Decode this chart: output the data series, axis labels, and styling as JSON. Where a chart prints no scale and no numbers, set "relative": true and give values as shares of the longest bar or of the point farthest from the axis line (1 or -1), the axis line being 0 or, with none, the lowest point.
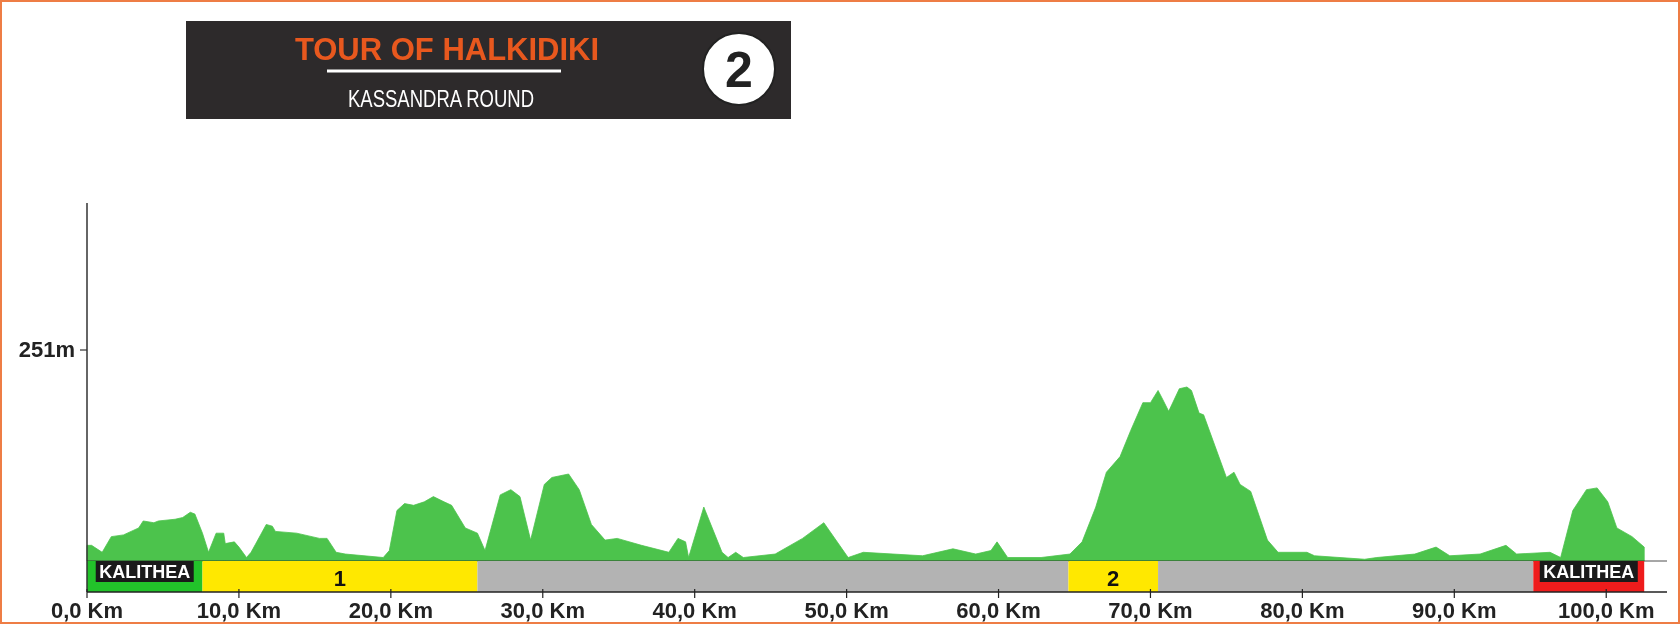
{
  "chart_data": [
    {
      "type": "area",
      "title": "TOUR OF HALKIDIKI",
      "subtitle": "KASSANDRA ROUND",
      "ylabel": "251m",
      "annotations": [
        "2"
      ],
      "relative": true,
      "tick_labels": false,
      "x": [
        0,
        0.3,
        1.0,
        1.6,
        2.4,
        3.4,
        3.7,
        4.4,
        4.7,
        5.8,
        6.3,
        6.8,
        7.1,
        7.6,
        8.0,
        8.5,
        9.0,
        9.1,
        9.7,
        10.0,
        10.5,
        10.8,
        11.8,
        12.2,
        12.4,
        13.8,
        15.3,
        15.8,
        16.4,
        17.0,
        19.5,
        19.9,
        20.4,
        20.9,
        21.5,
        22.2,
        22.8,
        23.5,
        24.0,
        24.9,
        25.7,
        26.2,
        27.2,
        27.9,
        28.5,
        29.2,
        30.1,
        30.6,
        31.7,
        32.4,
        33.2,
        34.1,
        34.9,
        36.5,
        38.3,
        38.9,
        39.4,
        39.6,
        40.6,
        41.8,
        42.2,
        42.7,
        43.2,
        45.3,
        47.1,
        48.5,
        50.1,
        51.1,
        55.0,
        57.0,
        58.5,
        59.5,
        59.9,
        60.6,
        62.8,
        64.7,
        65.5,
        66.4,
        67.1,
        68.0,
        68.7,
        69.5,
        70.0,
        70.5,
        70.8,
        71.2,
        71.9,
        72.4,
        72.7,
        73.2,
        73.5,
        75.0,
        75.5,
        75.9,
        76.6,
        77.7,
        78.4,
        80.3,
        80.8,
        84.1,
        84.9,
        87.4,
        88.8,
        89.7,
        91.7,
        93.4,
        94.1,
        96.3,
        97.0,
        97.8,
        98.7,
        99.4,
        100.1,
        100.7,
        101.7,
        102.5
      ],
      "series": [
        {
          "color": "#4cc34c",
          "values": [
            0.09,
            0.09,
            0.05,
            0.14,
            0.15,
            0.19,
            0.23,
            0.22,
            0.23,
            0.24,
            0.25,
            0.28,
            0.27,
            0.16,
            0.05,
            0.16,
            0.16,
            0.1,
            0.11,
            0.08,
            0.02,
            0.05,
            0.21,
            0.2,
            0.17,
            0.16,
            0.13,
            0.13,
            0.05,
            0.04,
            0.02,
            0.06,
            0.29,
            0.33,
            0.32,
            0.34,
            0.37,
            0.34,
            0.32,
            0.19,
            0.16,
            0.06,
            0.38,
            0.41,
            0.37,
            0.12,
            0.44,
            0.48,
            0.5,
            0.41,
            0.21,
            0.12,
            0.13,
            0.09,
            0.05,
            0.13,
            0.11,
            0.02,
            0.31,
            0.05,
            0.02,
            0.05,
            0.02,
            0.04,
            0.13,
            0.22,
            0.02,
            0.05,
            0.03,
            0.07,
            0.04,
            0.06,
            0.11,
            0.02,
            0.02,
            0.04,
            0.11,
            0.31,
            0.51,
            0.6,
            0.75,
            0.91,
            0.91,
            0.98,
            0.93,
            0.86,
            0.99,
            1,
            0.98,
            0.85,
            0.84,
            0.48,
            0.51,
            0.44,
            0.4,
            0.12,
            0.05,
            0.05,
            0.03,
            0.01,
            0.02,
            0.04,
            0.08,
            0.03,
            0.04,
            0.09,
            0.04,
            0.05,
            0.02,
            0.29,
            0.41,
            0.42,
            0.34,
            0.19,
            0.14,
            0.08
          ]
        }
      ],
      "xlim": [
        0,
        104
      ]
    },
    {
      "type": "bar",
      "orientation": "horizontal",
      "stacked": true,
      "tick_labels": "x",
      "categories": [
        null
      ],
      "series": [
        {
          "name": "KALITHEA",
          "color": "#22c32a",
          "values": [
            7.6
          ]
        },
        {
          "name": "1",
          "color": "#ffe800",
          "values": [
            18.1
          ]
        },
        {
          "color": "#b3b3b3",
          "values": [
            38.9
          ]
        },
        {
          "name": "2",
          "color": "#ffe800",
          "values": [
            5.9
          ]
        },
        {
          "color": "#b3b3b3",
          "values": [
            24.7
          ]
        },
        {
          "name": "KALITHEA",
          "color": "#ee1c1c",
          "values": [
            7.3
          ]
        }
      ],
      "xlim": [
        0,
        104
      ],
      "xticks": [
        {
          "value": 0,
          "label": "0,0 Km"
        },
        {
          "value": 10,
          "label": "10,0 Km"
        },
        {
          "value": 20,
          "label": "20,0 Km"
        },
        {
          "value": 30,
          "label": "30,0 Km"
        },
        {
          "value": 40,
          "label": "40,0 Km"
        },
        {
          "value": 50,
          "label": "50,0 Km"
        },
        {
          "value": 60,
          "label": "60,0 Km"
        },
        {
          "value": 70,
          "label": "70,0 Km"
        },
        {
          "value": 80,
          "label": "80,0 Km"
        },
        {
          "value": 90,
          "label": "90,0 Km"
        },
        {
          "value": 100,
          "label": "100,0 Km"
        }
      ]
    }
  ]
}
